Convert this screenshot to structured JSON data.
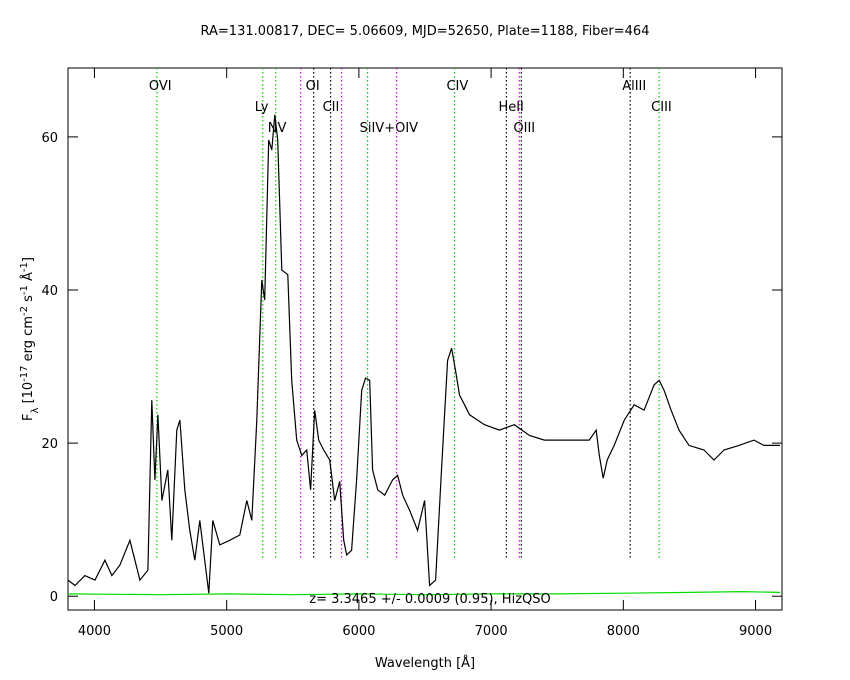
{
  "chart_data": {
    "type": "line",
    "title": "RA=131.00817, DEC= 5.06609, MJD=52650, Plate=1188, Fiber=464",
    "xlabel": "Wavelength [Å]",
    "ylabel": [
      {
        "text": "F"
      },
      {
        "text": "λ",
        "shift": "sub"
      },
      {
        "text": " [10"
      },
      {
        "text": "-17",
        "shift": "sup"
      },
      {
        "text": " erg cm"
      },
      {
        "text": "-2",
        "shift": "sup"
      },
      {
        "text": " s"
      },
      {
        "text": "-1",
        "shift": "sup"
      },
      {
        "text": " Å"
      },
      {
        "text": "-1",
        "shift": "sup"
      },
      {
        "text": "]"
      }
    ],
    "annotation": "z= 3.3465 +/- 0.0009 (0.95), HizQSO",
    "xlim": [
      3800,
      9200
    ],
    "xticks": [
      4000,
      5000,
      6000,
      7000,
      8000,
      9000
    ],
    "ylim": [
      -1.8,
      69
    ],
    "yticks": [
      0,
      20,
      40,
      60
    ],
    "series": [
      {
        "color": "#000000",
        "x": [
          3800,
          3853,
          3928,
          4004,
          4079,
          4132,
          4193,
          4268,
          4306,
          4344,
          4404,
          4434,
          4457,
          4480,
          4510,
          4555,
          4585,
          4623,
          4646,
          4683,
          4721,
          4759,
          4797,
          4834,
          4865,
          4895,
          4948,
          5023,
          5099,
          5152,
          5190,
          5228,
          5266,
          5288,
          5318,
          5341,
          5364,
          5386,
          5417,
          5462,
          5492,
          5530,
          5568,
          5605,
          5635,
          5666,
          5696,
          5734,
          5779,
          5817,
          5855,
          5885,
          5908,
          5945,
          5983,
          6021,
          6051,
          6082,
          6104,
          6142,
          6195,
          6255,
          6293,
          6331,
          6384,
          6444,
          6497,
          6535,
          6580,
          6625,
          6671,
          6701,
          6731,
          6761,
          6837,
          6950,
          7063,
          7176,
          7290,
          7403,
          7516,
          7629,
          7742,
          7795,
          7818,
          7848,
          7878,
          7931,
          8007,
          8082,
          8157,
          8233,
          8271,
          8308,
          8361,
          8421,
          8497,
          8610,
          8686,
          8761,
          8874,
          8988,
          9063,
          9185
        ],
        "values": [
          2.1,
          1.4,
          2.7,
          2.1,
          4.7,
          2.7,
          4.1,
          7.3,
          4.7,
          2.1,
          3.4,
          25.6,
          15.2,
          23.7,
          12.5,
          16.5,
          7.3,
          21.7,
          23.0,
          13.9,
          8.6,
          4.7,
          9.9,
          4.7,
          0.4,
          9.9,
          6.7,
          7.3,
          8.0,
          12.5,
          9.9,
          23.0,
          41.3,
          38.7,
          59.6,
          58.3,
          62.9,
          59.6,
          42.6,
          42.0,
          28.2,
          20.4,
          18.4,
          19.1,
          13.9,
          24.3,
          20.4,
          19.1,
          17.8,
          12.5,
          15.0,
          7.3,
          5.4,
          6.0,
          15.2,
          26.9,
          28.5,
          28.2,
          16.5,
          13.9,
          13.2,
          15.2,
          15.8,
          13.2,
          11.2,
          8.6,
          12.5,
          1.4,
          2.1,
          16.5,
          30.8,
          32.4,
          29.5,
          26.3,
          23.7,
          22.4,
          21.7,
          22.4,
          21.0,
          20.4,
          20.4,
          20.4,
          20.4,
          21.7,
          18.4,
          15.4,
          17.8,
          19.7,
          23.0,
          25.0,
          24.3,
          27.6,
          28.2,
          26.9,
          24.3,
          21.7,
          19.7,
          19.1,
          17.8,
          19.1,
          19.7,
          20.4,
          19.7,
          19.7
        ]
      },
      {
        "color": "#00dd00",
        "x": [
          3800,
          4500,
          5000,
          5500,
          6000,
          6500,
          7000,
          7500,
          8000,
          8500,
          8900,
          9185
        ],
        "values": [
          0.3,
          0.2,
          0.3,
          0.2,
          0.3,
          0.2,
          0.3,
          0.3,
          0.4,
          0.5,
          0.6,
          0.5
        ]
      }
    ],
    "lines": [
      {
        "wavelength": 4472,
        "label": "OVI",
        "color": "#00cc00"
      },
      {
        "wavelength": 5273,
        "label": "Ly",
        "color": "#00cc00"
      },
      {
        "wavelength": 5371,
        "label": "NV",
        "color": "#00cc00"
      },
      {
        "wavelength": 5560,
        "color": "#dd00dd"
      },
      {
        "wavelength": 5658,
        "label": "OI",
        "color": "#000000"
      },
      {
        "wavelength": 5786,
        "label": "CII",
        "color": "#000000"
      },
      {
        "wavelength": 5869,
        "color": "#dd00dd"
      },
      {
        "wavelength": 6066,
        "label": "SiIV+OIV",
        "color": "#00cc00"
      },
      {
        "wavelength": 6285,
        "color": "#dd00dd"
      },
      {
        "wavelength": 6723,
        "label": "CIV",
        "color": "#00cc00"
      },
      {
        "wavelength": 7116,
        "label": "HeII",
        "color": "#000000"
      },
      {
        "wavelength": 7213,
        "color": "#dd00dd"
      },
      {
        "wavelength": 7229,
        "label": "OIII",
        "color": "#000000"
      },
      {
        "wavelength": 8052,
        "label": "AlIII",
        "color": "#000000"
      },
      {
        "wavelength": 8271,
        "label": "CIII",
        "color": "#00cc00"
      }
    ]
  }
}
